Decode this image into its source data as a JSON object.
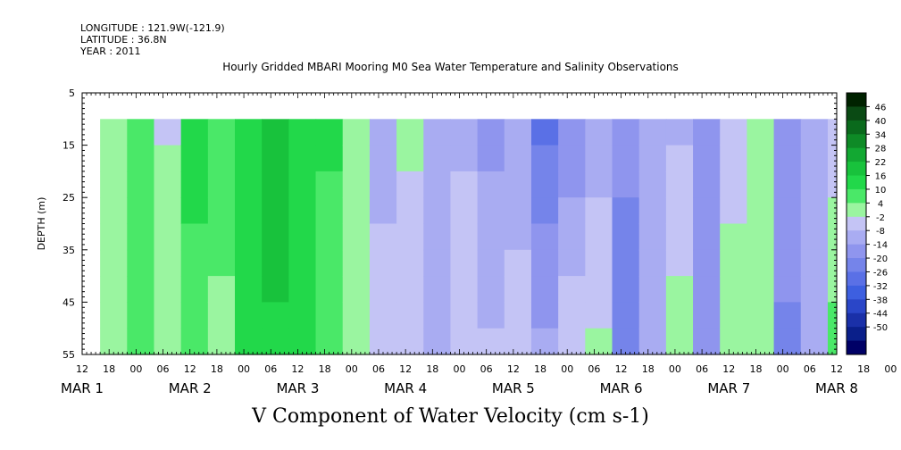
{
  "header": {
    "longitude": "LONGITUDE : 121.9W(-121.9)",
    "latitude": "LATITUDE : 36.8N",
    "year": "YEAR : 2011"
  },
  "colors": {
    "strong_negative": "#0a1f8a",
    "mid_negative": "#3d5fe0",
    "weak_negative": "#a9acf2",
    "weak_positive": "#9af5a0",
    "mid_positive": "#22d84a",
    "strong_positive": "#0a5a1c"
  },
  "chart_data": {
    "type": "heatmap",
    "title": "Hourly Gridded MBARI Mooring M0 Sea Water Temperature and Salinity Observations",
    "bottom_title": "V Component of Water Velocity (cm s-1)",
    "ylabel": "DEPTH (m)",
    "y_axis": {
      "ticks": [
        5,
        15,
        25,
        35,
        45,
        55
      ],
      "range": [
        5,
        55
      ],
      "inverted": true
    },
    "x_hour_ticks": [
      "12",
      "18",
      "00",
      "06",
      "12",
      "18",
      "00",
      "06",
      "12",
      "18",
      "00",
      "06",
      "12",
      "18",
      "00",
      "06",
      "12",
      "18",
      "00",
      "06",
      "12",
      "18",
      "00",
      "06",
      "12",
      "18",
      "00",
      "06",
      "12",
      "18",
      "00",
      "06",
      "12"
    ],
    "x_day_labels": [
      "MAR 1",
      "MAR 2",
      "MAR 3",
      "MAR 4",
      "MAR 5",
      "MAR 6",
      "MAR 7",
      "MAR 8"
    ],
    "data_start": "MAR 1 16:00",
    "data_end": "MAR 8 12:00",
    "depth_top": 10,
    "depth_bottom": 55,
    "colorbar": {
      "levels": [
        46,
        40,
        34,
        28,
        22,
        16,
        10,
        4,
        -2,
        -8,
        -14,
        -20,
        -26,
        -32,
        -38,
        -44,
        -50
      ],
      "range": [
        -50,
        50
      ],
      "colors": [
        "#002200",
        "#0a4a14",
        "#0a6a1c",
        "#0e8a26",
        "#12a832",
        "#18c23c",
        "#22d84a",
        "#4ae868",
        "#9af5a0",
        "#c4c4f5",
        "#a9acf2",
        "#8f95ee",
        "#7584ea",
        "#5a70e6",
        "#3d5fe0",
        "#2a46c8",
        "#1a30a8",
        "#0a1f8a",
        "#000066"
      ]
    },
    "columns": [
      {
        "time": "MAR 1 16:00",
        "v_top": 6,
        "v_bottom": 8
      },
      {
        "time": "MAR 1 22:00",
        "v_top": 8,
        "v_bottom": 10
      },
      {
        "time": "MAR 2 04:00",
        "v_top": 2,
        "v_bottom": 6
      },
      {
        "time": "MAR 2 10:00",
        "v_top": 14,
        "v_bottom": 12
      },
      {
        "time": "MAR 2 16:00",
        "v_top": 12,
        "v_bottom": 6
      },
      {
        "time": "MAR 2 22:00",
        "v_top": 16,
        "v_bottom": 14
      },
      {
        "time": "MAR 3 04:00",
        "v_top": 20,
        "v_bottom": 18
      },
      {
        "time": "MAR 3 10:00",
        "v_top": 18,
        "v_bottom": 16
      },
      {
        "time": "MAR 3 16:00",
        "v_top": 14,
        "v_bottom": 10
      },
      {
        "time": "MAR 3 22:00",
        "v_top": 8,
        "v_bottom": 4
      },
      {
        "time": "MAR 4 04:00",
        "v_top": -6,
        "v_bottom": 2
      },
      {
        "time": "MAR 4 10:00",
        "v_top": 4,
        "v_bottom": -2
      },
      {
        "time": "MAR 4 16:00",
        "v_top": -8,
        "v_bottom": -4
      },
      {
        "time": "MAR 4 22:00",
        "v_top": -4,
        "v_bottom": 2
      },
      {
        "time": "MAR 5 04:00",
        "v_top": -10,
        "v_bottom": -2
      },
      {
        "time": "MAR 5 10:00",
        "v_top": -8,
        "v_bottom": 2
      },
      {
        "time": "MAR 5 16:00",
        "v_top": -20,
        "v_bottom": -6
      },
      {
        "time": "MAR 5 22:00",
        "v_top": -14,
        "v_bottom": 2
      },
      {
        "time": "MAR 6 04:00",
        "v_top": -6,
        "v_bottom": 4
      },
      {
        "time": "MAR 6 10:00",
        "v_top": -12,
        "v_bottom": -16
      },
      {
        "time": "MAR 6 16:00",
        "v_top": -8,
        "v_bottom": -4
      },
      {
        "time": "MAR 6 22:00",
        "v_top": -4,
        "v_bottom": 6
      },
      {
        "time": "MAR 7 04:00",
        "v_top": -10,
        "v_bottom": -8
      },
      {
        "time": "MAR 7 10:00",
        "v_top": -2,
        "v_bottom": 8
      },
      {
        "time": "MAR 7 16:00",
        "v_top": 8,
        "v_bottom": 4
      },
      {
        "time": "MAR 7 22:00",
        "v_top": -10,
        "v_bottom": -14
      },
      {
        "time": "MAR 8 04:00",
        "v_top": -6,
        "v_bottom": -8
      },
      {
        "time": "MAR 8 10:00",
        "v_top": -2,
        "v_bottom": 10
      }
    ]
  }
}
